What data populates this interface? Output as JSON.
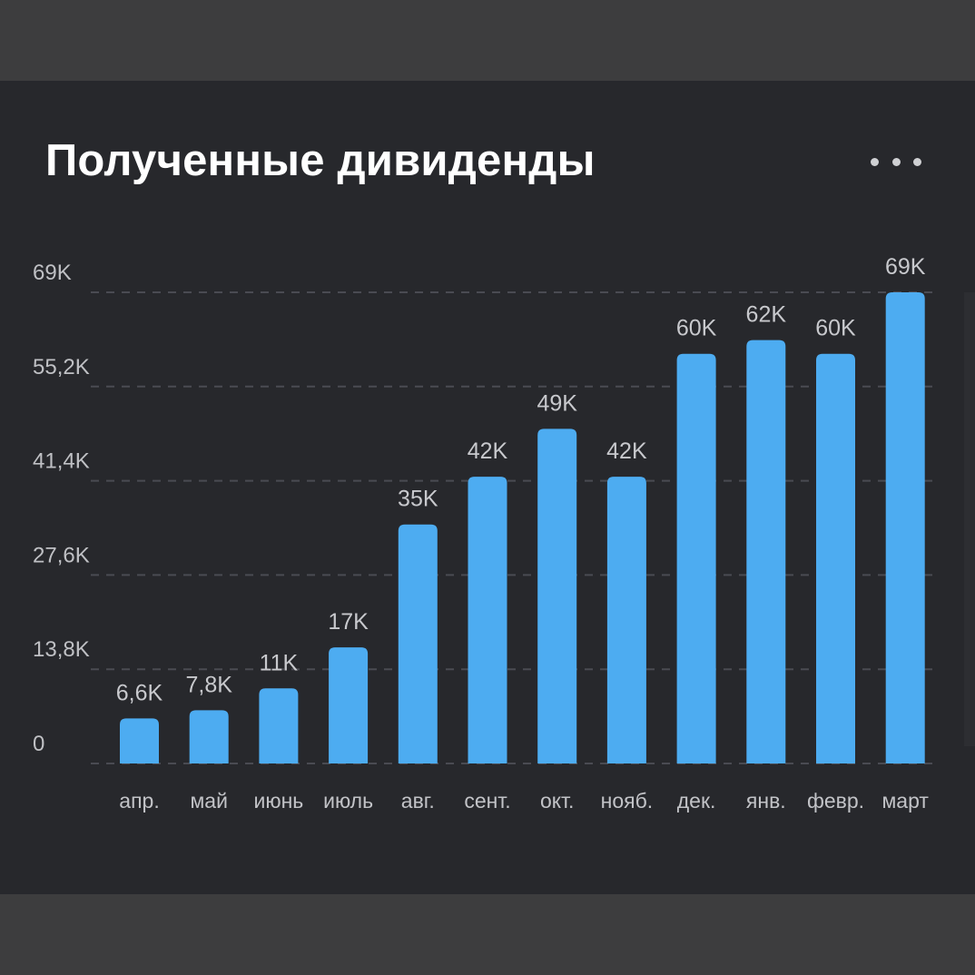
{
  "card": {
    "title": "Полученные дивиденды",
    "more_icon": "more-horizontal-icon"
  },
  "colors": {
    "card_background": "#27282c",
    "page_background": "#3d3d3e",
    "bar": "#4dacf1",
    "gridline": "#4a4b52"
  },
  "chart_data": {
    "type": "bar",
    "title": "Полученные дивиденды",
    "categories": [
      "апр.",
      "май",
      "июнь",
      "июль",
      "авг.",
      "сент.",
      "окт.",
      "нояб.",
      "дек.",
      "янв.",
      "февр.",
      "март"
    ],
    "values": [
      6600,
      7800,
      11000,
      17000,
      35000,
      42000,
      49000,
      42000,
      60000,
      62000,
      60000,
      69000
    ],
    "data_labels": [
      "6,6K",
      "7,8K",
      "11K",
      "17K",
      "35K",
      "42K",
      "49K",
      "42K",
      "60K",
      "62K",
      "60K",
      "69K"
    ],
    "y_ticks": [
      0,
      13800,
      27600,
      41400,
      55200,
      69000
    ],
    "y_tick_labels": [
      "0",
      "13,8K",
      "27,6K",
      "41,4K",
      "55,2K",
      "69K"
    ],
    "ylim": [
      0,
      69000
    ],
    "grid": true,
    "grid_style": "dashed",
    "legend": "none",
    "xlabel": "",
    "ylabel": ""
  }
}
